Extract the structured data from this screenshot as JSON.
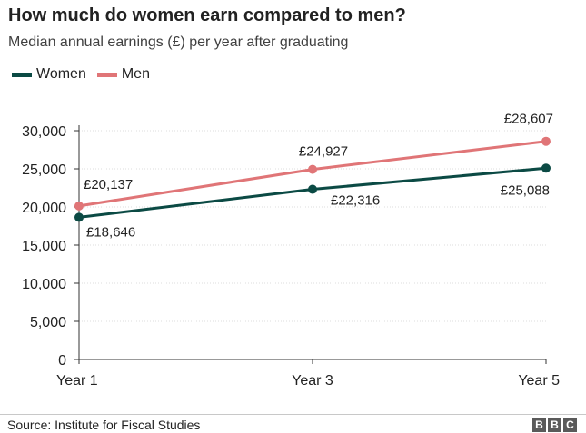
{
  "title": "How much do women earn compared to men?",
  "subtitle": "Median annual earnings (£) per year after graduating",
  "source": "Source: Institute for Fiscal Studies",
  "logo": [
    "B",
    "B",
    "C"
  ],
  "colors": {
    "women": "#0b4a44",
    "men": "#e07577",
    "axis": "#333333",
    "grid": "#dddddd"
  },
  "chart_data": {
    "type": "line",
    "title": "How much do women earn compared to men?",
    "subtitle": "Median annual earnings (£) per year after graduating",
    "categories": [
      "Year 1",
      "Year 3",
      "Year 5"
    ],
    "ylim": [
      0,
      30000
    ],
    "yticks": [
      "0",
      "5,000",
      "10,000",
      "15,000",
      "20,000",
      "25,000",
      "30,000"
    ],
    "legend_position": "top-left",
    "series": [
      {
        "name": "Women",
        "color": "#0b4a44",
        "values": [
          18646,
          22316,
          25088
        ],
        "labels": [
          "£18,646",
          "£22,316",
          "£25,088"
        ]
      },
      {
        "name": "Men",
        "color": "#e07577",
        "values": [
          20137,
          24927,
          28607
        ],
        "labels": [
          "£20,137",
          "£24,927",
          "£28,607"
        ]
      }
    ]
  }
}
